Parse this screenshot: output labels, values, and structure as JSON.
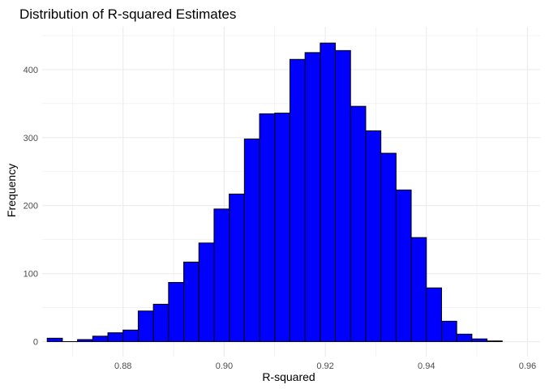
{
  "chart_data": {
    "type": "bar",
    "title": "Distribution of R-squared Estimates",
    "xlabel": "R-squared",
    "ylabel": "Frequency",
    "bin_width": 0.003,
    "bins": [
      {
        "x": 0.8665,
        "count": 5
      },
      {
        "x": 0.8695,
        "count": 0
      },
      {
        "x": 0.8725,
        "count": 3
      },
      {
        "x": 0.8755,
        "count": 8
      },
      {
        "x": 0.8785,
        "count": 13
      },
      {
        "x": 0.8815,
        "count": 17
      },
      {
        "x": 0.8845,
        "count": 45
      },
      {
        "x": 0.8875,
        "count": 55
      },
      {
        "x": 0.8905,
        "count": 87
      },
      {
        "x": 0.8935,
        "count": 117
      },
      {
        "x": 0.8965,
        "count": 145
      },
      {
        "x": 0.8995,
        "count": 195
      },
      {
        "x": 0.9025,
        "count": 217
      },
      {
        "x": 0.9055,
        "count": 298
      },
      {
        "x": 0.9085,
        "count": 335
      },
      {
        "x": 0.9115,
        "count": 336
      },
      {
        "x": 0.9145,
        "count": 415
      },
      {
        "x": 0.9175,
        "count": 425
      },
      {
        "x": 0.9205,
        "count": 439
      },
      {
        "x": 0.9235,
        "count": 428
      },
      {
        "x": 0.9265,
        "count": 346
      },
      {
        "x": 0.9295,
        "count": 310
      },
      {
        "x": 0.9325,
        "count": 277
      },
      {
        "x": 0.9355,
        "count": 223
      },
      {
        "x": 0.9385,
        "count": 153
      },
      {
        "x": 0.9415,
        "count": 79
      },
      {
        "x": 0.9445,
        "count": 30
      },
      {
        "x": 0.9475,
        "count": 11
      },
      {
        "x": 0.9505,
        "count": 4
      },
      {
        "x": 0.9535,
        "count": 1
      }
    ],
    "xlim": [
      0.864,
      0.9625
    ],
    "ylim": [
      -22,
      463
    ],
    "x_ticks": [
      {
        "value": 0.88,
        "label": "0.88"
      },
      {
        "value": 0.9,
        "label": "0.90"
      },
      {
        "value": 0.92,
        "label": "0.92"
      },
      {
        "value": 0.94,
        "label": "0.94"
      },
      {
        "value": 0.96,
        "label": "0.96"
      }
    ],
    "y_ticks": [
      {
        "value": 0,
        "label": "0"
      },
      {
        "value": 100,
        "label": "100"
      },
      {
        "value": 200,
        "label": "200"
      },
      {
        "value": 300,
        "label": "300"
      },
      {
        "value": 400,
        "label": "400"
      }
    ],
    "grid": true,
    "legend": "none",
    "bar_fill": "#0000ff",
    "bar_outline": "#000000",
    "grid_color": "#ebebeb"
  }
}
